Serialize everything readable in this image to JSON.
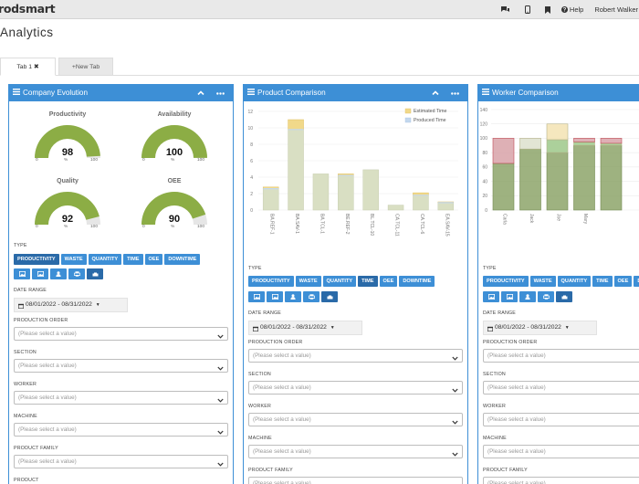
{
  "app": {
    "logo": "rodsmart",
    "help_label": "Help",
    "user_name": "Robert Walker",
    "page_title": "Analytics"
  },
  "tabs": [
    {
      "label": "Tab 1 ✖",
      "active": true
    },
    {
      "label": "+New Tab",
      "active": false
    }
  ],
  "panels": {
    "company": {
      "title": "Company Evolution",
      "gauges": [
        {
          "title": "Productivity",
          "value": "98",
          "min": "0",
          "unit": "%",
          "max": "100",
          "fill": 0.98
        },
        {
          "title": "Availability",
          "value": "100",
          "min": "0",
          "unit": "%",
          "max": "100",
          "fill": 1.0
        },
        {
          "title": "Quality",
          "value": "92",
          "min": "0",
          "unit": "%",
          "max": "100",
          "fill": 0.92
        },
        {
          "title": "OEE",
          "value": "90",
          "min": "0",
          "unit": "%",
          "max": "100",
          "fill": 0.9
        }
      ],
      "selected_type": "PRODUCTIVITY",
      "fields": [
        {
          "label": "PRODUCTION ORDER",
          "placeholder": "(Please select a value)"
        },
        {
          "label": "SECTION",
          "placeholder": "(Please select a value)"
        },
        {
          "label": "WORKER",
          "placeholder": "(Please select a value)"
        },
        {
          "label": "MACHINE",
          "placeholder": "(Please select a value)"
        },
        {
          "label": "PRODUCT FAMILY",
          "placeholder": "(Please select a value)"
        },
        {
          "label": "PRODUCT",
          "placeholder": ""
        }
      ]
    },
    "product": {
      "title": "Product Comparison",
      "selected_type": "TIME",
      "fields": [
        {
          "label": "PRODUCTION ORDER",
          "placeholder": "(Please select a value)"
        },
        {
          "label": "SECTION",
          "placeholder": "(Please select a value)"
        },
        {
          "label": "WORKER",
          "placeholder": "(Please select a value)"
        },
        {
          "label": "MACHINE",
          "placeholder": "(Please select a value)"
        },
        {
          "label": "PRODUCT FAMILY",
          "placeholder": "(Please select a value)"
        }
      ]
    },
    "worker": {
      "title": "Worker Comparison",
      "selected_type": "",
      "fields": [
        {
          "label": "PRODUCTION ORDER",
          "placeholder": "(Please select a value)"
        },
        {
          "label": "SECTION",
          "placeholder": "(Please select a value)"
        },
        {
          "label": "WORKER",
          "placeholder": "(Please select a value)"
        },
        {
          "label": "MACHINE",
          "placeholder": "(Please select a value)"
        },
        {
          "label": "PRODUCT FAMILY",
          "placeholder": "(Please select a value)"
        }
      ]
    }
  },
  "type_label": "TYPE",
  "type_buttons": [
    "PRODUCTIVITY",
    "WASTE",
    "QUANTITY",
    "TIME",
    "OEE",
    "DOWNTIME"
  ],
  "group_icons": [
    "image-icon",
    "image-icon",
    "user-icon",
    "print-icon",
    "machine-icon"
  ],
  "date_label": "DATE RANGE",
  "date_value": "08/01/2022 - 08/31/2022",
  "colors": {
    "accent": "#3d8fd6",
    "gauge_fill": "#8cad45",
    "gauge_track": "#e6e6e6",
    "estimated": "#f1d98a",
    "produced": "#c4d8ee",
    "bar_base": "#d9dfc3",
    "bar_green": "#8da56a",
    "bar_red": "#d8a2a8"
  },
  "chart_data": [
    {
      "type": "bar",
      "title": "",
      "categories": [
        "BA.REF-1",
        "BA.SAV-1",
        "BA.TCL-1",
        "BE.REF-2",
        "BL.TCL-10",
        "CA.TCL-11",
        "CA.TCL-6",
        "EA.SAV-15"
      ],
      "series": [
        {
          "name": "Estimated Time",
          "values": [
            0.2,
            1.2,
            0,
            0.2,
            0,
            0,
            0.3,
            0.1
          ]
        },
        {
          "name": "Produced Time",
          "values": [
            2.6,
            9.8,
            4.4,
            4.2,
            4.9,
            0.6,
            1.8,
            0.9
          ]
        }
      ],
      "stacked": true,
      "ylim": [
        0,
        12
      ],
      "yticks": [
        0,
        2,
        4,
        6,
        8,
        10,
        12
      ],
      "legend": "top-right"
    },
    {
      "type": "bar",
      "title": "",
      "categories": [
        "Carla",
        "Jack",
        "Joe",
        "Mary",
        ""
      ],
      "series": [
        {
          "name": "",
          "values": [
            65,
            85,
            80,
            90,
            90
          ]
        },
        {
          "name": "",
          "values": [
            0,
            0,
            18,
            5,
            3
          ]
        },
        {
          "name": "",
          "values": [
            35,
            15,
            22,
            5,
            7
          ]
        }
      ],
      "stacked": true,
      "ylim": [
        0,
        140
      ],
      "yticks": [
        0,
        20,
        40,
        60,
        80,
        100,
        120,
        140
      ],
      "legend": "none"
    }
  ]
}
